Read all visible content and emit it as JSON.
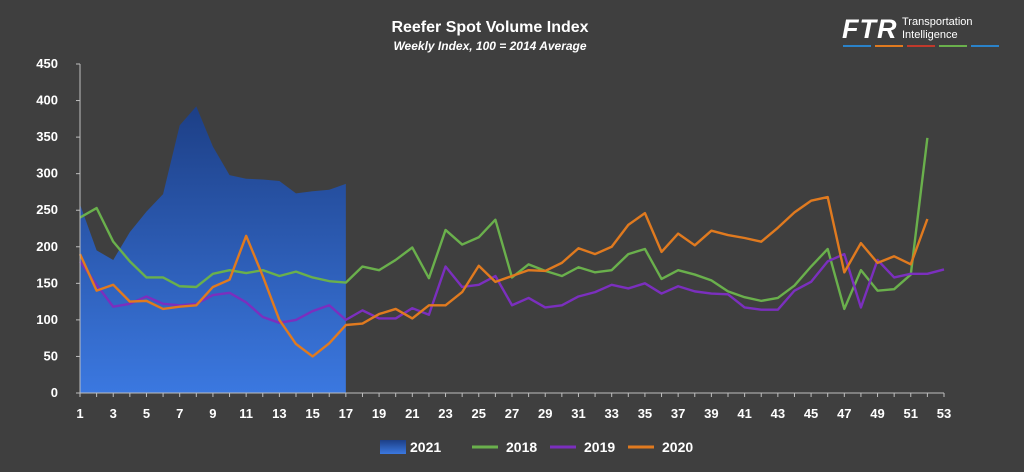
{
  "chart_data": {
    "type": "line",
    "title": "Reefer Spot Volume Index",
    "subtitle": "Weekly Index, 100 = 2014 Average",
    "ylim": [
      0,
      450
    ],
    "y_ticks": [
      0,
      50,
      100,
      150,
      200,
      250,
      300,
      350,
      400,
      450
    ],
    "x_ticks": [
      1,
      3,
      5,
      7,
      9,
      11,
      13,
      15,
      17,
      19,
      21,
      23,
      25,
      27,
      29,
      31,
      33,
      35,
      37,
      39,
      41,
      43,
      45,
      47,
      49,
      51,
      53
    ],
    "xlim": [
      1,
      53
    ],
    "grid": false,
    "legend_position": "bottom",
    "background": "#3f3f3f",
    "series": [
      {
        "name": "2021",
        "style": "area",
        "color": "#2f5fc8",
        "x": [
          1,
          2,
          3,
          4,
          5,
          6,
          7,
          8,
          9,
          10,
          11,
          12,
          13,
          14,
          15,
          16,
          17
        ],
        "values": [
          258,
          195,
          182,
          220,
          248,
          272,
          366,
          392,
          337,
          298,
          293,
          292,
          290,
          273,
          276,
          278,
          286
        ]
      },
      {
        "name": "2018",
        "style": "line",
        "color": "#6ab04c",
        "x": [
          1,
          2,
          3,
          4,
          5,
          6,
          7,
          8,
          9,
          10,
          11,
          12,
          13,
          14,
          15,
          16,
          17,
          18,
          19,
          20,
          21,
          22,
          23,
          24,
          25,
          26,
          27,
          28,
          29,
          30,
          31,
          32,
          33,
          34,
          35,
          36,
          37,
          38,
          39,
          40,
          41,
          42,
          43,
          44,
          45,
          46,
          47,
          48,
          49,
          50,
          51,
          52
        ],
        "values": [
          240,
          253,
          207,
          180,
          158,
          158,
          146,
          145,
          163,
          168,
          164,
          168,
          160,
          166,
          158,
          153,
          151,
          173,
          168,
          182,
          199,
          157,
          223,
          203,
          213,
          237,
          158,
          176,
          167,
          160,
          172,
          165,
          168,
          190,
          197,
          156,
          168,
          162,
          154,
          139,
          131,
          126,
          130,
          147,
          173,
          197,
          115,
          168,
          140,
          142,
          162,
          349
        ]
      },
      {
        "name": "2019",
        "style": "line",
        "color": "#7b2fbe",
        "x": [
          1,
          2,
          3,
          4,
          5,
          6,
          7,
          8,
          9,
          10,
          11,
          12,
          13,
          14,
          15,
          16,
          17,
          18,
          19,
          20,
          21,
          22,
          23,
          24,
          25,
          26,
          27,
          28,
          29,
          30,
          31,
          32,
          33,
          34,
          35,
          36,
          37,
          38,
          39,
          40,
          41,
          42,
          43,
          44,
          45,
          46,
          47,
          48,
          49,
          50,
          51,
          52,
          53
        ],
        "values": [
          180,
          148,
          118,
          122,
          132,
          122,
          120,
          122,
          134,
          137,
          124,
          104,
          96,
          100,
          112,
          120,
          100,
          113,
          102,
          102,
          116,
          107,
          173,
          145,
          148,
          160,
          120,
          130,
          117,
          120,
          132,
          138,
          148,
          143,
          150,
          136,
          146,
          139,
          136,
          135,
          117,
          114,
          114,
          140,
          152,
          180,
          190,
          117,
          182,
          158,
          163,
          163,
          169
        ]
      },
      {
        "name": "2020",
        "style": "line",
        "color": "#e07a1f",
        "x": [
          1,
          2,
          3,
          4,
          5,
          6,
          7,
          8,
          9,
          10,
          11,
          12,
          13,
          14,
          15,
          16,
          17,
          18,
          19,
          20,
          21,
          22,
          23,
          24,
          25,
          26,
          27,
          28,
          29,
          30,
          31,
          32,
          33,
          34,
          35,
          36,
          37,
          38,
          39,
          40,
          41,
          42,
          43,
          44,
          45,
          46,
          47,
          48,
          49,
          50,
          51,
          52
        ],
        "values": [
          190,
          140,
          148,
          125,
          126,
          115,
          118,
          120,
          145,
          155,
          215,
          160,
          100,
          67,
          50,
          68,
          93,
          95,
          108,
          115,
          102,
          120,
          120,
          138,
          174,
          152,
          160,
          168,
          167,
          178,
          198,
          190,
          200,
          230,
          246,
          193,
          218,
          202,
          222,
          216,
          212,
          207,
          226,
          247,
          263,
          268,
          165,
          205,
          178,
          187,
          176,
          238
        ]
      }
    ]
  },
  "logo": {
    "main": "FTR",
    "line1": "Transportation",
    "line2": "Intelligence",
    "stripe_colors": [
      "#2a82c9",
      "#e07a1f",
      "#c0392b",
      "#6ab04c",
      "#2a82c9"
    ]
  }
}
